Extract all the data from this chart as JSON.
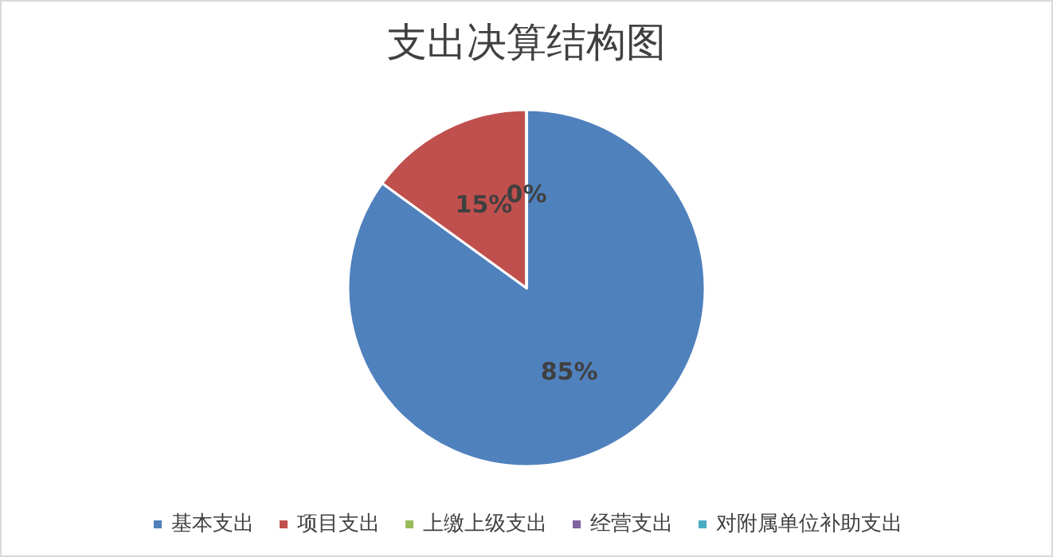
{
  "chart_data": {
    "type": "pie",
    "title": "支出决算结构图",
    "categories": [
      "基本支出",
      "项目支出",
      "上缴上级支出",
      "经营支出",
      "对附属单位补助支出"
    ],
    "values": [
      85,
      15,
      0,
      0,
      0
    ],
    "colors": [
      "#4f81bd",
      "#c0504d",
      "#9bbb59",
      "#8064a2",
      "#4bacc6"
    ],
    "value_labels": [
      "85%",
      "15%",
      "0%",
      null,
      null
    ],
    "legend": "bottom"
  }
}
